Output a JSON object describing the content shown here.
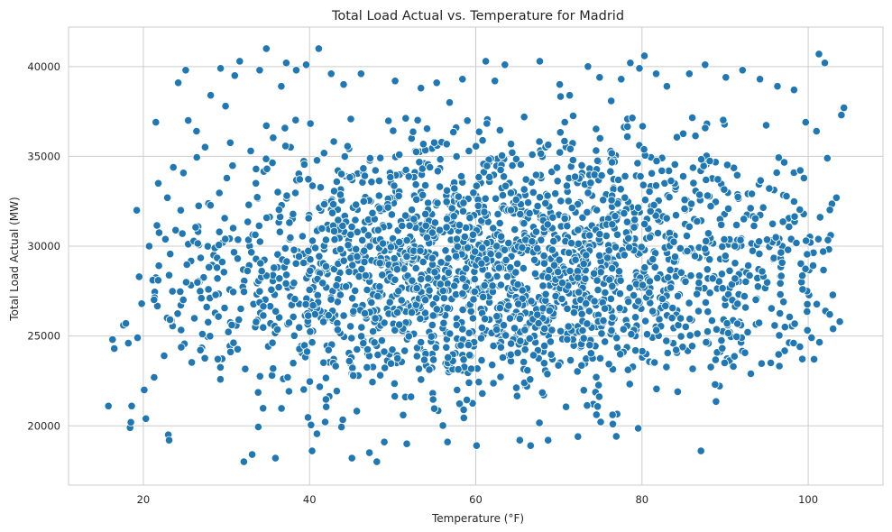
{
  "chart_data": {
    "type": "scatter",
    "title": "Total Load Actual vs. Temperature for Madrid",
    "xlabel": "Temperature (°F)",
    "ylabel": "Total Load Actual (MW)",
    "xlim": [
      11,
      109
    ],
    "ylim": [
      16700,
      42200
    ],
    "x_ticks": [
      20,
      40,
      60,
      80,
      100
    ],
    "y_ticks": [
      20000,
      25000,
      30000,
      35000,
      40000
    ],
    "x_tick_labels": [
      "20",
      "40",
      "60",
      "80",
      "100"
    ],
    "y_tick_labels": [
      "20000",
      "25000",
      "30000",
      "35000",
      "40000"
    ],
    "grid": true,
    "marker_color": "#1f77b4",
    "marker_edge_color": "#ffffff",
    "points": [
      [
        15.8,
        21100
      ],
      [
        16.3,
        24800
      ],
      [
        16.5,
        24300
      ],
      [
        17.6,
        25600
      ],
      [
        17.9,
        25700
      ],
      [
        18.2,
        24600
      ],
      [
        18.4,
        19900
      ],
      [
        18.5,
        20200
      ],
      [
        18.6,
        21100
      ],
      [
        19.2,
        32000
      ],
      [
        19.3,
        24900
      ],
      [
        19.5,
        28300
      ],
      [
        19.8,
        26800
      ],
      [
        20.1,
        22000
      ],
      [
        20.3,
        20400
      ],
      [
        20.7,
        30000
      ],
      [
        21.3,
        22700
      ],
      [
        21.5,
        36900
      ],
      [
        21.8,
        33500
      ],
      [
        22.5,
        23900
      ],
      [
        22.9,
        32700
      ],
      [
        23.0,
        19500
      ],
      [
        23.1,
        19200
      ],
      [
        24.2,
        39100
      ],
      [
        24.7,
        30700
      ],
      [
        25.1,
        39800
      ],
      [
        25.4,
        37000
      ],
      [
        26.4,
        36400
      ],
      [
        28.1,
        38400
      ],
      [
        29.3,
        39900
      ],
      [
        29.9,
        37800
      ],
      [
        31.0,
        39500
      ],
      [
        31.6,
        40300
      ],
      [
        32.1,
        18000
      ],
      [
        33.1,
        18400
      ],
      [
        34.0,
        39800
      ],
      [
        34.8,
        41000
      ],
      [
        35.9,
        18200
      ],
      [
        36.6,
        38900
      ],
      [
        37.2,
        40200
      ],
      [
        38.4,
        39800
      ],
      [
        39.6,
        40100
      ],
      [
        40.3,
        18600
      ],
      [
        41.1,
        41000
      ],
      [
        42.6,
        39600
      ],
      [
        44.1,
        39000
      ],
      [
        45.1,
        18200
      ],
      [
        46.2,
        39600
      ],
      [
        47.2,
        18500
      ],
      [
        48.1,
        18000
      ],
      [
        49.0,
        19100
      ],
      [
        50.3,
        39200
      ],
      [
        51.7,
        19000
      ],
      [
        53.4,
        38800
      ],
      [
        55.3,
        39100
      ],
      [
        56.6,
        19100
      ],
      [
        58.4,
        39300
      ],
      [
        60.1,
        18900
      ],
      [
        61.2,
        40300
      ],
      [
        62.3,
        39200
      ],
      [
        63.5,
        40100
      ],
      [
        65.3,
        19200
      ],
      [
        66.6,
        18900
      ],
      [
        67.7,
        40300
      ],
      [
        68.7,
        19200
      ],
      [
        70.1,
        39000
      ],
      [
        71.3,
        38400
      ],
      [
        72.3,
        19400
      ],
      [
        73.5,
        40000
      ],
      [
        74.9,
        39400
      ],
      [
        76.5,
        20100
      ],
      [
        77.5,
        39300
      ],
      [
        78.6,
        40200
      ],
      [
        79.7,
        39900
      ],
      [
        80.3,
        40600
      ],
      [
        81.7,
        39600
      ],
      [
        83.0,
        38900
      ],
      [
        84.3,
        21900
      ],
      [
        85.7,
        39600
      ],
      [
        87.1,
        18600
      ],
      [
        87.6,
        40100
      ],
      [
        88.8,
        22300
      ],
      [
        90.1,
        39400
      ],
      [
        91.0,
        23300
      ],
      [
        92.1,
        39800
      ],
      [
        93.1,
        22900
      ],
      [
        94.2,
        39300
      ],
      [
        95.5,
        23500
      ],
      [
        96.3,
        38900
      ],
      [
        97.2,
        25500
      ],
      [
        98.3,
        38700
      ],
      [
        99.0,
        24400
      ],
      [
        99.7,
        36900
      ],
      [
        100.4,
        24900
      ],
      [
        101.0,
        36400
      ],
      [
        101.3,
        40700
      ],
      [
        101.8,
        29700
      ],
      [
        102.0,
        40200
      ],
      [
        102.3,
        34900
      ],
      [
        102.6,
        26200
      ],
      [
        103.0,
        25400
      ],
      [
        103.4,
        32700
      ],
      [
        103.8,
        25800
      ],
      [
        104.0,
        37300
      ],
      [
        104.3,
        37700
      ]
    ],
    "density_model": {
      "x_range": [
        21,
        103
      ],
      "y_center_low_temp": 28300,
      "y_center_high_temp": 29800,
      "y_spread": 5000,
      "y_min": 18800,
      "y_max": 39000
    }
  }
}
